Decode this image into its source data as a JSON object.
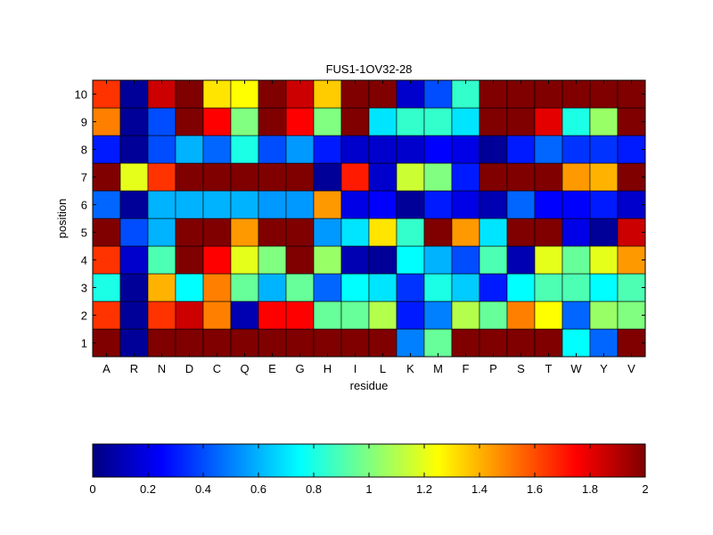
{
  "chart_data": {
    "type": "heatmap",
    "title": "FUS1-1OV32-28",
    "xlabel": "residue",
    "ylabel": "position",
    "x_categories": [
      "A",
      "R",
      "N",
      "D",
      "C",
      "Q",
      "E",
      "G",
      "H",
      "I",
      "L",
      "K",
      "M",
      "F",
      "P",
      "S",
      "T",
      "W",
      "Y",
      "V"
    ],
    "y_categories": [
      "1",
      "2",
      "3",
      "4",
      "5",
      "6",
      "7",
      "8",
      "9",
      "10"
    ],
    "values": [
      [
        2.0,
        0.05,
        2.0,
        2.0,
        2.0,
        2.0,
        2.0,
        2.0,
        2.0,
        2.0,
        2.0,
        0.5,
        0.95,
        2.0,
        2.0,
        2.0,
        2.0,
        0.75,
        0.45,
        2.0
      ],
      [
        1.65,
        0.05,
        1.65,
        1.85,
        1.5,
        0.1,
        1.75,
        1.75,
        0.95,
        0.95,
        1.1,
        0.3,
        0.5,
        1.1,
        0.95,
        1.5,
        1.25,
        0.45,
        1.05,
        1.0
      ],
      [
        0.8,
        0.05,
        1.4,
        0.75,
        1.5,
        0.95,
        0.6,
        0.95,
        0.45,
        0.75,
        0.7,
        0.35,
        0.8,
        0.65,
        0.3,
        0.75,
        0.9,
        0.9,
        0.75,
        0.9
      ],
      [
        1.65,
        0.15,
        0.9,
        2.0,
        1.75,
        1.2,
        1.0,
        2.0,
        1.05,
        0.1,
        0.05,
        0.75,
        0.6,
        0.4,
        0.9,
        0.1,
        1.2,
        0.95,
        1.2,
        1.45
      ],
      [
        2.0,
        0.4,
        0.6,
        2.0,
        2.0,
        1.45,
        2.0,
        2.0,
        0.55,
        0.7,
        1.3,
        0.85,
        2.0,
        1.45,
        0.7,
        2.0,
        2.0,
        0.2,
        0.05,
        1.85
      ],
      [
        0.45,
        0.05,
        0.6,
        0.6,
        0.6,
        0.6,
        0.55,
        0.55,
        1.45,
        0.2,
        0.25,
        0.05,
        0.3,
        0.2,
        0.1,
        0.45,
        0.25,
        0.25,
        0.3,
        0.15
      ],
      [
        2.0,
        1.2,
        1.65,
        2.0,
        2.0,
        2.0,
        2.0,
        2.0,
        0.05,
        1.7,
        0.15,
        1.15,
        1.0,
        0.3,
        2.0,
        2.0,
        2.0,
        1.45,
        1.4,
        2.0
      ],
      [
        0.3,
        0.05,
        0.4,
        0.6,
        0.45,
        0.8,
        0.4,
        0.55,
        0.3,
        0.15,
        0.15,
        0.15,
        0.25,
        0.2,
        0.05,
        0.3,
        0.45,
        0.35,
        0.35,
        0.3
      ],
      [
        1.5,
        0.05,
        0.4,
        2.0,
        1.75,
        1.0,
        2.0,
        1.75,
        1.0,
        2.0,
        0.7,
        0.85,
        0.85,
        0.7,
        2.0,
        2.0,
        1.8,
        0.8,
        1.05,
        2.0
      ],
      [
        1.65,
        0.05,
        1.85,
        2.0,
        1.3,
        1.25,
        2.0,
        1.85,
        1.35,
        2.0,
        2.0,
        0.15,
        0.4,
        0.85,
        2.0,
        2.0,
        2.0,
        2.0,
        2.0,
        2.0
      ]
    ],
    "color_range": [
      0,
      2
    ],
    "colorbar_ticks": [
      "0",
      "0.2",
      "0.4",
      "0.6",
      "0.8",
      "1",
      "1.2",
      "1.4",
      "1.6",
      "1.8",
      "2"
    ],
    "colormap": "jet",
    "colorbar_placement": "bottom",
    "grid": false
  }
}
